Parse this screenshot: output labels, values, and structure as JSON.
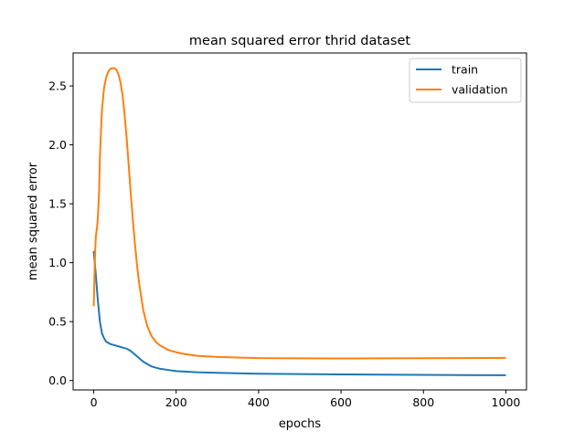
{
  "chart_data": {
    "type": "line",
    "title": "mean squared error thrid dataset",
    "xlabel": "epochs",
    "ylabel": "mean squared error",
    "xlim": [
      -50,
      1050
    ],
    "ylim": [
      -0.08,
      2.78
    ],
    "xticks": [
      0,
      200,
      400,
      600,
      800,
      1000
    ],
    "yticks": [
      0.0,
      0.5,
      1.0,
      1.5,
      2.0,
      2.5
    ],
    "xtick_labels": [
      "0",
      "200",
      "400",
      "600",
      "800",
      "1000"
    ],
    "ytick_labels": [
      "0.0",
      "0.5",
      "1.0",
      "1.5",
      "2.0",
      "2.5"
    ],
    "grid": false,
    "legend_position": "top-right",
    "series": [
      {
        "name": "train",
        "color": "#1f77b4",
        "x": [
          0,
          5,
          10,
          15,
          20,
          25,
          30,
          40,
          50,
          60,
          70,
          80,
          90,
          100,
          120,
          140,
          160,
          180,
          200,
          250,
          300,
          400,
          500,
          600,
          700,
          800,
          900,
          1000
        ],
        "y": [
          1.1,
          0.9,
          0.68,
          0.5,
          0.4,
          0.36,
          0.33,
          0.31,
          0.3,
          0.29,
          0.28,
          0.27,
          0.25,
          0.22,
          0.16,
          0.12,
          0.1,
          0.09,
          0.08,
          0.07,
          0.065,
          0.058,
          0.055,
          0.052,
          0.05,
          0.048,
          0.046,
          0.045
        ]
      },
      {
        "name": "validation",
        "color": "#ff7f0e",
        "x": [
          0,
          3,
          5,
          8,
          10,
          13,
          15,
          18,
          20,
          25,
          30,
          35,
          40,
          45,
          50,
          55,
          60,
          65,
          70,
          75,
          80,
          85,
          90,
          95,
          100,
          105,
          110,
          120,
          130,
          140,
          150,
          160,
          170,
          180,
          190,
          200,
          220,
          250,
          300,
          350,
          400,
          500,
          600,
          700,
          800,
          900,
          1000
        ],
        "y": [
          0.63,
          1.05,
          1.22,
          1.3,
          1.38,
          1.6,
          1.9,
          2.15,
          2.3,
          2.48,
          2.57,
          2.62,
          2.645,
          2.65,
          2.65,
          2.64,
          2.6,
          2.53,
          2.42,
          2.25,
          2.05,
          1.82,
          1.58,
          1.36,
          1.16,
          0.98,
          0.83,
          0.6,
          0.46,
          0.38,
          0.33,
          0.3,
          0.28,
          0.26,
          0.25,
          0.24,
          0.225,
          0.21,
          0.2,
          0.195,
          0.19,
          0.188,
          0.187,
          0.188,
          0.189,
          0.19,
          0.192
        ]
      }
    ]
  }
}
